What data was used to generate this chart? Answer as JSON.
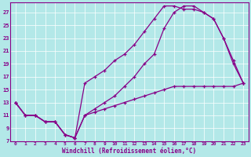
{
  "xlabel": "Windchill (Refroidissement éolien,°C)",
  "bg_color": "#b3e8e8",
  "line_color": "#880088",
  "xlim": [
    -0.5,
    23.5
  ],
  "ylim": [
    7,
    28.5
  ],
  "xticks": [
    0,
    1,
    2,
    3,
    4,
    5,
    6,
    7,
    8,
    9,
    10,
    11,
    12,
    13,
    14,
    15,
    16,
    17,
    18,
    19,
    20,
    21,
    22,
    23
  ],
  "yticks": [
    7,
    9,
    11,
    13,
    15,
    17,
    19,
    21,
    23,
    25,
    27
  ],
  "line1_x": [
    0,
    1,
    2,
    3,
    4,
    5,
    6,
    7,
    8,
    9,
    10,
    11,
    12,
    13,
    14,
    15,
    16,
    17,
    18,
    19,
    20,
    21,
    22,
    23
  ],
  "line1_y": [
    13,
    11,
    11,
    10,
    10,
    8,
    7.5,
    16,
    17,
    18,
    19.5,
    20.5,
    22,
    24,
    26,
    28,
    28,
    27.5,
    27.5,
    27,
    26,
    23,
    19,
    16
  ],
  "line2_x": [
    0,
    1,
    2,
    3,
    4,
    5,
    6,
    7,
    8,
    9,
    10,
    11,
    12,
    13,
    14,
    15,
    16,
    17,
    18,
    19,
    20,
    21,
    22,
    23
  ],
  "line2_y": [
    13,
    11,
    11,
    10,
    10,
    8,
    7.5,
    11,
    12,
    13,
    14,
    15.5,
    17,
    19,
    20.5,
    24.5,
    27,
    28,
    28,
    27,
    26,
    23,
    19.5,
    16
  ],
  "line3_x": [
    0,
    1,
    2,
    3,
    4,
    5,
    6,
    7,
    8,
    9,
    10,
    11,
    12,
    13,
    14,
    15,
    16,
    17,
    18,
    19,
    20,
    21,
    22,
    23
  ],
  "line3_y": [
    13,
    11,
    11,
    10,
    10,
    8,
    7.5,
    11,
    11.5,
    12,
    12.5,
    13,
    13.5,
    14,
    14.5,
    15,
    15.5,
    15.5,
    15.5,
    15.5,
    15.5,
    15.5,
    15.5,
    16
  ]
}
